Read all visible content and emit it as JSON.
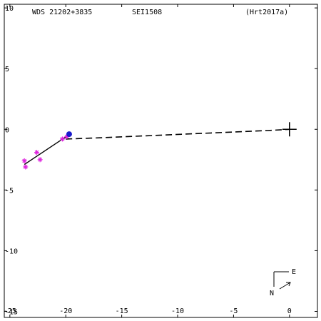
{
  "header": {
    "wds": "WDS 21202+3835",
    "discoverer": "SEI1508",
    "reference": "(Hrt2017a)"
  },
  "compass": {
    "east_label": "E",
    "north_label": "N"
  },
  "chart_data": {
    "type": "scatter",
    "title": "",
    "xlabel": "",
    "ylabel": "",
    "xlim": [
      -25.5,
      2.5
    ],
    "ylim": [
      -15.5,
      10.3
    ],
    "x_ticks": [
      -25,
      -20,
      -15,
      -10,
      -5,
      0
    ],
    "x_tick_labels": [
      "-25",
      "-20",
      "-15",
      "-10",
      "-5",
      "0"
    ],
    "y_ticks": [
      10,
      5,
      0,
      -5,
      -10,
      -15
    ],
    "y_tick_labels": [
      "10",
      "5",
      "0",
      "-5",
      "-10",
      "-15"
    ],
    "primary": {
      "x": 0,
      "y": 0
    },
    "dashed_path": [
      {
        "x": -20.0,
        "y": -0.8
      },
      {
        "x": -17.0,
        "y": -0.7
      },
      {
        "x": -12.0,
        "y": -0.5
      },
      {
        "x": -7.0,
        "y": -0.3
      },
      {
        "x": -2.0,
        "y": -0.1
      },
      {
        "x": 0.0,
        "y": 0.0
      }
    ],
    "solid_path": [
      {
        "x": -23.7,
        "y": -2.9
      },
      {
        "x": -19.8,
        "y": -0.5
      }
    ],
    "measurements": [
      {
        "x": -23.7,
        "y": -2.6
      },
      {
        "x": -23.6,
        "y": -3.1
      },
      {
        "x": -22.6,
        "y": -1.9
      },
      {
        "x": -22.3,
        "y": -2.5
      },
      {
        "x": -20.3,
        "y": -0.8
      },
      {
        "x": -19.9,
        "y": -0.6
      }
    ],
    "latest": {
      "x": -19.7,
      "y": -0.4
    },
    "colors": {
      "axes": "#000000",
      "measurement": "#dd22dd",
      "latest": "#1a1acc",
      "path": "#000000"
    }
  }
}
